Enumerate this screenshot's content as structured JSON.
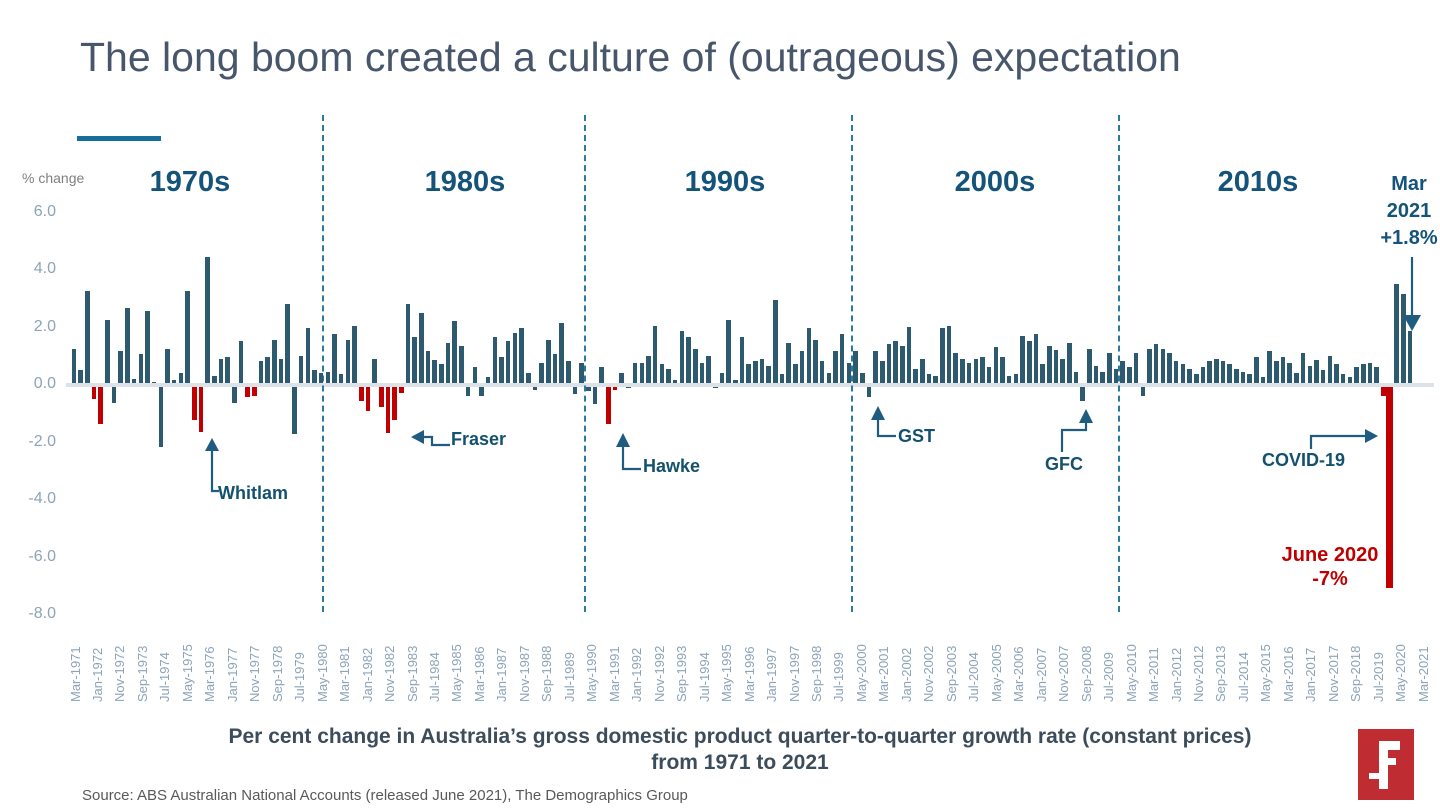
{
  "title": "The long boom created a culture of (outrageous) expectation",
  "axis": {
    "unit_label": "% change"
  },
  "decades": [
    "1970s",
    "1980s",
    "1990s",
    "2000s",
    "2010s"
  ],
  "annotations": {
    "whitlam": "Whitlam",
    "fraser": "Fraser",
    "hawke": "Hawke",
    "gst": "GST",
    "gfc": "GFC",
    "covid": "COVID-19",
    "june2020_line1": "June 2020",
    "june2020_line2": "-7%",
    "mar2021_line1": "Mar",
    "mar2021_line2": "2021",
    "mar2021_line3": "+1.8%"
  },
  "subtitle": [
    "Per cent change in Australia’s gross domestic product quarter-to-quarter growth rate (constant prices)",
    "from 1971 to 2021"
  ],
  "source": "Source:  ABS Australian National Accounts (released June 2021), The Demographics Group",
  "logo_letter": "F",
  "colors": {
    "bar": "#2e5a70",
    "negative_highlight": "#c00000",
    "accent_line": "#176d9c",
    "annotation_text": "#14537a",
    "axis_text": "#8ca3b8",
    "title_text": "#47566a",
    "logo_red": "#bf2c31"
  },
  "chart_data": {
    "type": "bar",
    "title": "The long boom created a culture of (outrageous) expectation",
    "subtitle": "Per cent change in Australia’s gross domestic product quarter-to-quarter growth rate (constant prices) from 1971 to 2021",
    "ylabel": "% change",
    "ylim": [
      -8.0,
      6.0
    ],
    "y_ticks": [
      "6.0",
      "4.0",
      "2.0",
      "0.0",
      "-2.0",
      "-4.0",
      "-6.0",
      "-8.0"
    ],
    "frequency": "quarterly",
    "start_quarter": "Mar-1971",
    "end_quarter": "Mar-2021",
    "x_labels": [
      "Mar-1971",
      "Jan-1972",
      "Nov-1972",
      "Sep-1973",
      "Jul-1974",
      "May-1975",
      "Mar-1976",
      "Jan-1977",
      "Nov-1977",
      "Sep-1978",
      "Jul-1979",
      "May-1980",
      "Mar-1981",
      "Jan-1982",
      "Nov-1982",
      "Sep-1983",
      "Jul-1984",
      "May-1985",
      "Mar-1986",
      "Jan-1987",
      "Nov-1987",
      "Sep-1988",
      "Jul-1989",
      "May-1990",
      "Mar-1991",
      "Jan-1992",
      "Nov-1992",
      "Sep-1993",
      "Jul-1994",
      "May-1995",
      "Mar-1996",
      "Jan-1997",
      "Nov-1997",
      "Sep-1998",
      "Jul-1999",
      "May-2000",
      "Mar-2001",
      "Jan-2002",
      "Nov-2002",
      "Sep-2003",
      "Jul-2004",
      "May-2005",
      "Mar-2006",
      "Jan-2007",
      "Nov-2007",
      "Sep-2008",
      "Jul-2009",
      "May-2010",
      "Mar-2011",
      "Jan-2012",
      "Nov-2012",
      "Sep-2013",
      "Jul-2014",
      "May-2015",
      "Mar-2016",
      "Jan-2017",
      "Nov-2017",
      "Sep-2018",
      "Jul-2019",
      "May-2020",
      "Mar-2021"
    ],
    "values": [
      1.2,
      0.45,
      3.2,
      -0.4,
      -1.3,
      2.2,
      -0.55,
      1.1,
      2.6,
      0.15,
      1.0,
      2.5,
      0.05,
      -2.1,
      1.2,
      0.1,
      0.35,
      3.2,
      -1.15,
      -1.55,
      4.4,
      0.25,
      0.85,
      0.9,
      -0.55,
      1.45,
      -0.35,
      -0.3,
      0.75,
      0.9,
      1.5,
      0.85,
      2.75,
      -1.65,
      0.95,
      1.9,
      0.45,
      0.35,
      0.4,
      1.7,
      0.3,
      1.5,
      2.0,
      -0.5,
      -0.85,
      0.85,
      -0.7,
      -1.6,
      -1.15,
      -0.2,
      2.75,
      1.6,
      2.45,
      1.1,
      0.8,
      0.65,
      1.4,
      2.15,
      1.3,
      -0.3,
      0.55,
      -0.3,
      0.2,
      1.6,
      0.9,
      1.45,
      1.75,
      1.9,
      0.35,
      -0.1,
      0.7,
      1.5,
      1.0,
      2.1,
      0.75,
      -0.25,
      0.7,
      -0.15,
      -0.6,
      0.55,
      -1.3,
      -0.1,
      0.35,
      -0.05,
      0.7,
      0.7,
      0.95,
      2.0,
      0.65,
      0.5,
      0.1,
      1.8,
      1.6,
      1.2,
      0.7,
      0.95,
      -0.05,
      0.35,
      2.2,
      0.1,
      1.6,
      0.65,
      0.75,
      0.85,
      0.6,
      2.9,
      0.3,
      1.4,
      0.65,
      1.1,
      1.9,
      1.5,
      0.75,
      0.35,
      1.1,
      1.7,
      0.7,
      1.1,
      0.35,
      -0.35,
      1.1,
      0.75,
      1.35,
      1.45,
      1.3,
      1.95,
      0.5,
      0.85,
      0.3,
      0.25,
      1.9,
      2.0,
      1.05,
      0.85,
      0.7,
      0.85,
      0.9,
      0.55,
      1.25,
      0.9,
      0.25,
      0.3,
      1.65,
      1.45,
      1.7,
      0.65,
      1.3,
      1.15,
      0.85,
      1.4,
      0.4,
      -0.5,
      1.2,
      0.6,
      0.4,
      1.05,
      0.5,
      0.75,
      0.55,
      1.05,
      -0.3,
      1.2,
      1.35,
      1.2,
      1.05,
      0.75,
      0.65,
      0.5,
      0.3,
      0.55,
      0.75,
      0.85,
      0.75,
      0.65,
      0.5,
      0.4,
      0.3,
      0.9,
      0.2,
      1.1,
      0.75,
      0.9,
      0.7,
      0.35,
      1.05,
      0.6,
      0.8,
      0.45,
      0.95,
      0.65,
      0.3,
      0.2,
      0.55,
      0.65,
      0.7,
      0.55,
      -0.3,
      -7.0,
      3.45,
      3.1,
      1.8
    ],
    "red_indices": [
      3,
      4,
      18,
      19,
      26,
      27,
      43,
      44,
      46,
      47,
      48,
      49,
      80,
      81,
      196,
      197
    ],
    "annotated_points": [
      {
        "label": "Whitlam",
        "quarter": "Dec-1975",
        "value": -1.55
      },
      {
        "label": "Fraser",
        "quarter": "Dec-1982",
        "value": -1.6
      },
      {
        "label": "Hawke",
        "quarter": "Mar-1991",
        "value": -1.3
      },
      {
        "label": "GST",
        "quarter": "Dec-2000",
        "value": -0.35
      },
      {
        "label": "GFC",
        "quarter": "Dec-2008",
        "value": -0.5
      },
      {
        "label": "COVID-19 June 2020 -7%",
        "quarter": "Jun-2020",
        "value": -7.0
      },
      {
        "label": "Mar 2021 +1.8%",
        "quarter": "Mar-2021",
        "value": 1.8
      }
    ],
    "legend_position": "none",
    "grid": "zero-line-only"
  }
}
